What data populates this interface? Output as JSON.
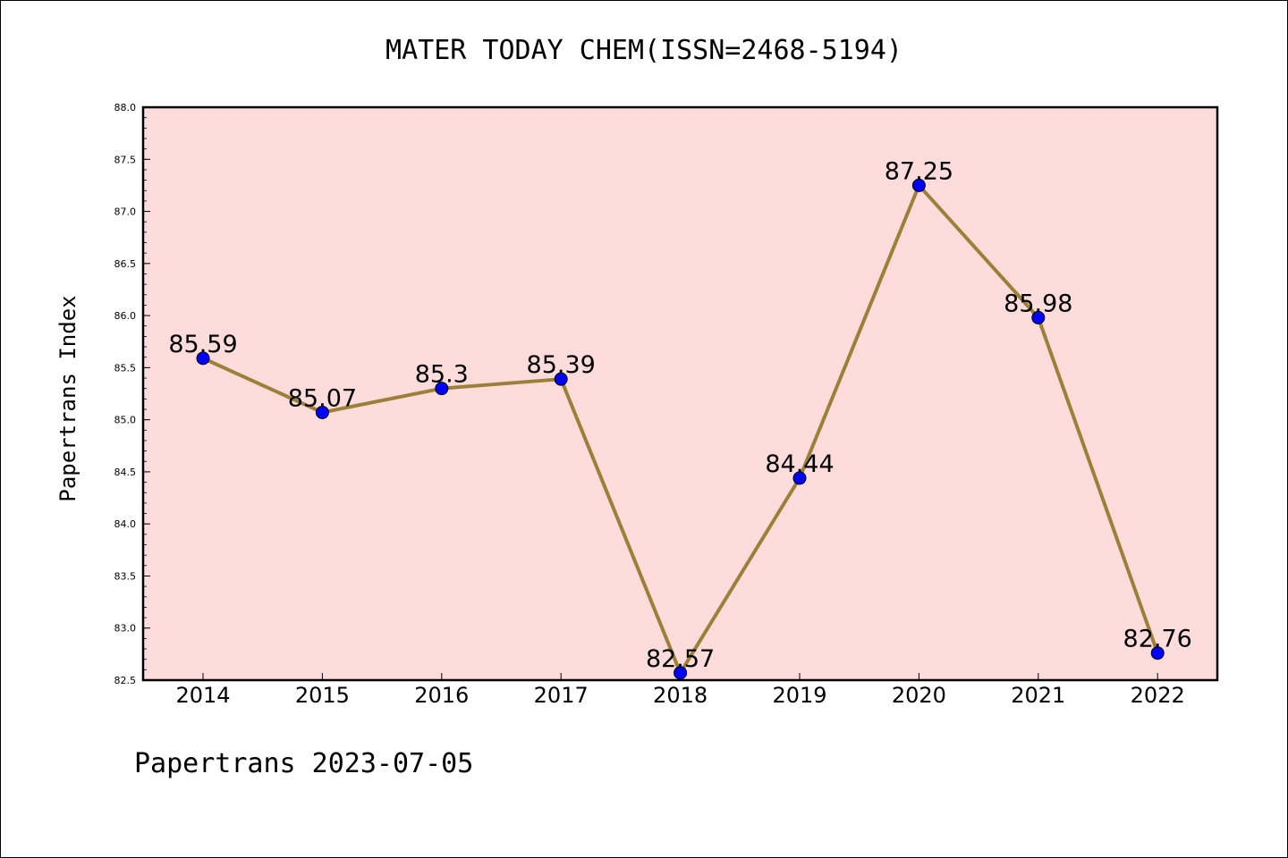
{
  "chart_data": {
    "type": "line",
    "title": "MATER TODAY CHEM(ISSN=2468-5194)",
    "ylabel": "Papertrans Index",
    "xlabel": "",
    "categories": [
      "2014",
      "2015",
      "2016",
      "2017",
      "2018",
      "2019",
      "2020",
      "2021",
      "2022"
    ],
    "values": [
      85.59,
      85.07,
      85.3,
      85.39,
      82.57,
      84.44,
      87.25,
      85.98,
      82.76
    ],
    "data_labels": [
      "85.59",
      "85.07",
      "85.3",
      "85.39",
      "82.57",
      "84.44",
      "87.25",
      "85.98",
      "82.76"
    ],
    "ylim": [
      82.5,
      88.0
    ],
    "yticks": [
      "82.5",
      "83.0",
      "83.5",
      "84.0",
      "84.5",
      "85.0",
      "85.5",
      "86.0",
      "86.5",
      "87.0",
      "87.5",
      "88.0"
    ],
    "grid": false,
    "legend": "none",
    "colors": {
      "plot_background": "#ffdcdc",
      "line": "#9c8038",
      "marker": "#0000ff"
    }
  },
  "footer": {
    "text": "Papertrans 2023-07-05"
  }
}
